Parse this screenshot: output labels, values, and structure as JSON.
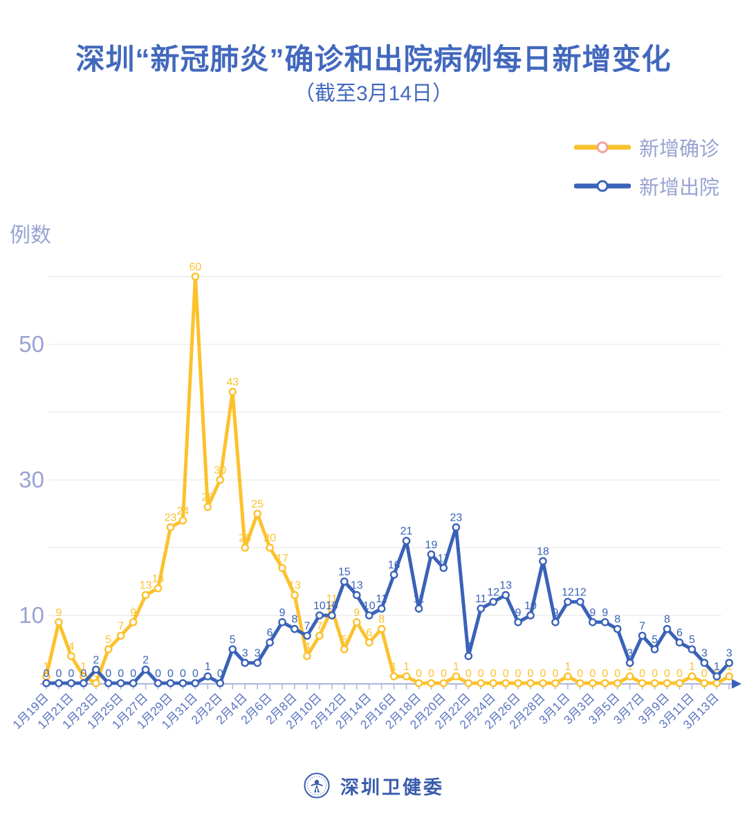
{
  "title": {
    "text": "深圳“新冠肺炎”确诊和出院病例每日新增变化",
    "subtitle": "（截至3月14日）"
  },
  "y_axis_label": "例数",
  "legend": [
    {
      "label": "新增确诊",
      "line_color": "#fcc22d",
      "marker_stroke": "#f2a09b"
    },
    {
      "label": "新增出院",
      "line_color": "#3a62b8",
      "marker_stroke": "#3a62b8"
    }
  ],
  "footer": {
    "brand": "深圳卫健委"
  },
  "colors": {
    "confirmed": "#fcc22d",
    "discharged": "#3a62b8",
    "title_blue": "#4268bd",
    "axis_text": "#99a3d2",
    "date_label": "#5a74c2",
    "gridline": "#e9e9ec",
    "axis_line": "#a9b4da"
  },
  "chart_data": {
    "type": "line",
    "title": "深圳“新冠肺炎”确诊和出院病例每日新增变化（截至3月14日）",
    "ylabel": "例数",
    "ylim": [
      0,
      62
    ],
    "y_ticks_labeled": [
      10,
      30,
      50
    ],
    "gridlines": [
      10,
      20,
      30,
      40,
      50,
      60
    ],
    "grid": "horizontal",
    "legend_position": "top-right",
    "x": [
      "1月19日",
      "1月20日",
      "1月21日",
      "1月22日",
      "1月23日",
      "1月24日",
      "1月25日",
      "1月26日",
      "1月27日",
      "1月28日",
      "1月29日",
      "1月30日",
      "1月31日",
      "2月1日",
      "2月2日",
      "2月3日",
      "2月4日",
      "2月5日",
      "2月6日",
      "2月7日",
      "2月8日",
      "2月9日",
      "2月10日",
      "2月11日",
      "2月12日",
      "2月13日",
      "2月14日",
      "2月15日",
      "2月16日",
      "2月17日",
      "2月18日",
      "2月19日",
      "2月20日",
      "2月21日",
      "2月22日",
      "2月23日",
      "2月24日",
      "2月25日",
      "2月26日",
      "2月27日",
      "2月28日",
      "2月29日",
      "3月1日",
      "3月2日",
      "3月3日",
      "3月4日",
      "3月5日",
      "3月6日",
      "3月7日",
      "3月8日",
      "3月9日",
      "3月10日",
      "3月11日",
      "3月12日",
      "3月13日",
      "3月14日"
    ],
    "x_label_every": 2,
    "series": [
      {
        "name": "新增确诊",
        "color": "#fcc22d",
        "values": [
          1,
          9,
          4,
          1,
          0,
          5,
          7,
          9,
          13,
          14,
          23,
          24,
          60,
          26,
          30,
          43,
          20,
          25,
          20,
          17,
          13,
          4,
          7,
          11,
          5,
          9,
          6,
          8,
          1,
          1,
          0,
          0,
          0,
          1,
          0,
          0,
          0,
          0,
          0,
          0,
          0,
          0,
          1,
          0,
          0,
          0,
          0,
          1,
          0,
          0,
          0,
          0,
          1,
          0,
          0,
          1
        ]
      },
      {
        "name": "新增出院",
        "color": "#3a62b8",
        "values": [
          0,
          0,
          0,
          0,
          2,
          0,
          0,
          0,
          2,
          0,
          0,
          0,
          0,
          1,
          0,
          5,
          3,
          3,
          6,
          9,
          8,
          7,
          10,
          10,
          15,
          13,
          10,
          11,
          16,
          21,
          11,
          19,
          17,
          23,
          4,
          11,
          12,
          13,
          9,
          10,
          18,
          9,
          12,
          12,
          9,
          9,
          8,
          3,
          7,
          5,
          8,
          6,
          5,
          3,
          1,
          3
        ]
      }
    ]
  }
}
